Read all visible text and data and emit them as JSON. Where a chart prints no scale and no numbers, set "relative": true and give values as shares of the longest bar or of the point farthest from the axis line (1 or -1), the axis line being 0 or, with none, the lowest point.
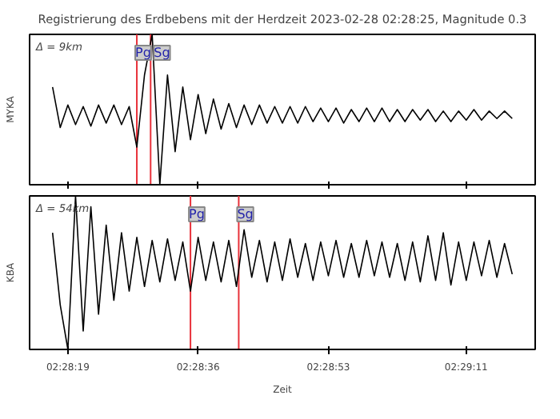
{
  "chart_data": [
    {
      "type": "line",
      "title": "Registrierung des Erdbebens mit der Herdzeit 2023-02-28 02:28:25, Magnitude 0.3",
      "ylabel": "MYKA",
      "relative": true,
      "tick_labels": false,
      "xlim": [
        2.470556,
        2.488889
      ],
      "xticks": [
        {
          "value": 2.471944,
          "label": null
        },
        {
          "value": 2.476667,
          "label": null
        },
        {
          "value": 2.481389,
          "label": null
        },
        {
          "value": 2.486389,
          "label": null
        }
      ],
      "x": [
        2.471389,
        2.471667,
        2.471944,
        2.472222,
        2.4725,
        2.472778,
        2.473056,
        2.473333,
        2.473611,
        2.473889,
        2.474167,
        2.474444,
        2.474722,
        2.475,
        2.475278,
        2.475556,
        2.475833,
        2.476111,
        2.476389,
        2.476667,
        2.476944,
        2.477222,
        2.4775,
        2.477778,
        2.478056,
        2.478333,
        2.478611,
        2.478889,
        2.479167,
        2.479444,
        2.479722,
        2.48,
        2.480278,
        2.480556,
        2.480833,
        2.481111,
        2.481389,
        2.481667,
        2.481944,
        2.482222,
        2.4825,
        2.482778,
        2.483056,
        2.483333,
        2.483611,
        2.483889,
        2.484167,
        2.484444,
        2.484722,
        2.485,
        2.485278,
        2.485556,
        2.485833,
        2.486111,
        2.486389,
        2.486667,
        2.486944,
        2.487222,
        2.4875,
        2.487778,
        2.488056
      ],
      "series": [
        {
          "color": "#000000",
          "values": [
            0.65,
            0.38,
            0.53,
            0.4,
            0.52,
            0.39,
            0.53,
            0.41,
            0.53,
            0.4,
            0.52,
            0.25,
            0.73,
            1,
            0,
            0.73,
            0.22,
            0.65,
            0.3,
            0.6,
            0.34,
            0.57,
            0.37,
            0.54,
            0.38,
            0.53,
            0.4,
            0.53,
            0.41,
            0.52,
            0.41,
            0.52,
            0.41,
            0.52,
            0.42,
            0.51,
            0.42,
            0.51,
            0.41,
            0.5,
            0.42,
            0.51,
            0.42,
            0.51,
            0.42,
            0.5,
            0.42,
            0.5,
            0.43,
            0.5,
            0.42,
            0.49,
            0.42,
            0.49,
            0.43,
            0.5,
            0.43,
            0.49,
            0.44,
            0.49,
            0.44
          ]
        }
      ],
      "ref_lines": [
        {
          "axis": "x",
          "value": 2.474444,
          "label": "Pg",
          "color": "#e8313a"
        },
        {
          "axis": "x",
          "value": 2.474944,
          "label": "Sg",
          "color": "#e8313a"
        }
      ],
      "annotations": [
        "Δ = 9km"
      ]
    },
    {
      "type": "line",
      "ylabel": "KBA",
      "xlabel": "Zeit",
      "relative": true,
      "tick_labels": "x",
      "xlim": [
        2.470556,
        2.488889
      ],
      "xticks": [
        {
          "value": 2.471944,
          "label": "02:28:19"
        },
        {
          "value": 2.476667,
          "label": "02:28:36"
        },
        {
          "value": 2.481389,
          "label": "02:28:53"
        },
        {
          "value": 2.486389,
          "label": "02:29:11"
        }
      ],
      "x": [
        2.471389,
        2.471667,
        2.471944,
        2.472222,
        2.4725,
        2.472778,
        2.473056,
        2.473333,
        2.473611,
        2.473889,
        2.474167,
        2.474444,
        2.474722,
        2.475,
        2.475278,
        2.475556,
        2.475833,
        2.476111,
        2.476389,
        2.476667,
        2.476944,
        2.477222,
        2.4775,
        2.477778,
        2.478056,
        2.478333,
        2.478611,
        2.478889,
        2.479167,
        2.479444,
        2.479722,
        2.48,
        2.480278,
        2.480556,
        2.480833,
        2.481111,
        2.481389,
        2.481667,
        2.481944,
        2.482222,
        2.4825,
        2.482778,
        2.483056,
        2.483333,
        2.483611,
        2.483889,
        2.484167,
        2.484444,
        2.484722,
        2.485,
        2.485278,
        2.485556,
        2.485833,
        2.486111,
        2.486389,
        2.486667,
        2.486944,
        2.487222,
        2.4875,
        2.487778,
        2.488056
      ],
      "series": [
        {
          "color": "#000000",
          "values": [
            0.76,
            0.29,
            0,
            1,
            0.12,
            0.93,
            0.23,
            0.81,
            0.32,
            0.76,
            0.38,
            0.73,
            0.41,
            0.71,
            0.44,
            0.72,
            0.45,
            0.7,
            0.38,
            0.73,
            0.45,
            0.7,
            0.44,
            0.71,
            0.41,
            0.78,
            0.47,
            0.71,
            0.44,
            0.7,
            0.45,
            0.72,
            0.47,
            0.69,
            0.45,
            0.7,
            0.48,
            0.71,
            0.47,
            0.69,
            0.47,
            0.71,
            0.48,
            0.7,
            0.47,
            0.69,
            0.45,
            0.7,
            0.44,
            0.74,
            0.45,
            0.76,
            0.42,
            0.7,
            0.45,
            0.7,
            0.48,
            0.71,
            0.47,
            0.69,
            0.49
          ]
        }
      ],
      "ref_lines": [
        {
          "axis": "x",
          "value": 2.476389,
          "label": "Pg",
          "color": "#e8313a"
        },
        {
          "axis": "x",
          "value": 2.478139,
          "label": "Sg",
          "color": "#e8313a"
        }
      ],
      "annotations": [
        "Δ = 54km"
      ]
    }
  ]
}
